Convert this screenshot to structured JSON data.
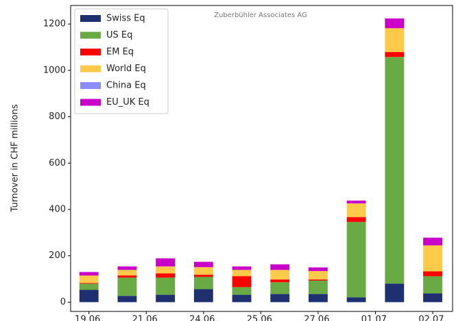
{
  "chart_data": {
    "type": "stacked_bar",
    "annotation": "Zuberbühler Associates AG",
    "ylabel": "Turnover in CHF millions",
    "x": [
      0,
      1,
      2,
      3,
      4,
      5,
      6,
      7,
      8,
      9
    ],
    "xlim": [
      -0.48,
      9.52
    ],
    "xticks": [
      {
        "value": 0,
        "label": "19.06."
      },
      {
        "value": 1.5,
        "label": "21.06."
      },
      {
        "value": 3,
        "label": "24.06."
      },
      {
        "value": 4.5,
        "label": "25.06."
      },
      {
        "value": 6,
        "label": "27.06."
      },
      {
        "value": 7.5,
        "label": "01.07."
      },
      {
        "value": 9,
        "label": "02.07."
      }
    ],
    "ylim": [
      -40,
      1280
    ],
    "yticks": [
      0,
      200,
      400,
      600,
      800,
      1000,
      1200
    ],
    "legend": "upper left",
    "series": [
      {
        "name": "Swiss Eq",
        "color": "#1f3070",
        "values": [
          53,
          27,
          32,
          56,
          32,
          35,
          35,
          21,
          80,
          38
        ]
      },
      {
        "name": "US Eq",
        "color": "#6aaa44",
        "values": [
          27,
          79,
          74,
          53,
          33,
          51,
          58,
          325,
          978,
          74
        ]
      },
      {
        "name": "EM Eq",
        "color": "#ff0000",
        "values": [
          3,
          9,
          18,
          9,
          47,
          12,
          5,
          21,
          21,
          21
        ]
      },
      {
        "name": "World Eq",
        "color": "#ffc94a",
        "values": [
          32,
          24,
          30,
          33,
          27,
          41,
          36,
          59,
          103,
          112
        ]
      },
      {
        "name": "China Eq",
        "color": "#8c8cff",
        "values": [
          0,
          0,
          0,
          0,
          0,
          0,
          0,
          0,
          0,
          0
        ]
      },
      {
        "name": "EU_UK Eq",
        "color": "#c800c8",
        "values": [
          15,
          15,
          35,
          23,
          15,
          24,
          16,
          12,
          42,
          33
        ]
      }
    ]
  }
}
